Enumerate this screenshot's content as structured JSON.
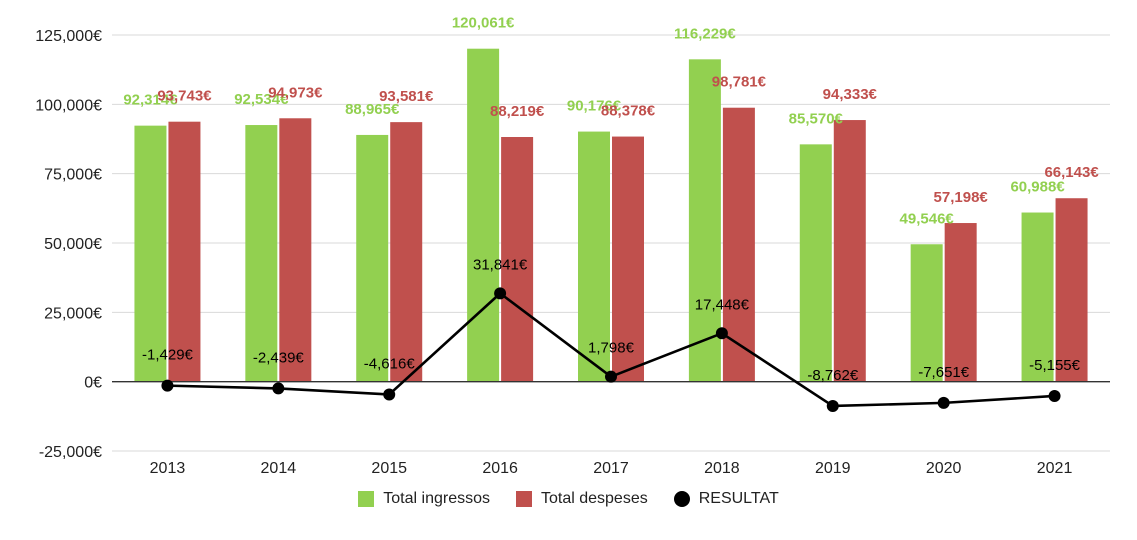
{
  "chart_data": {
    "type": "bar",
    "categories": [
      "2013",
      "2014",
      "2015",
      "2016",
      "2017",
      "2018",
      "2019",
      "2020",
      "2021"
    ],
    "series": [
      {
        "name": "Total ingressos",
        "type": "bar",
        "color": "#92d050",
        "values": [
          92314,
          92534,
          88965,
          120061,
          90176,
          116229,
          85570,
          49546,
          60988
        ],
        "labels": [
          "92,314€",
          "92,534€",
          "88,965€",
          "120,061€",
          "90,176€",
          "116,229€",
          "85,570€",
          "49,546€",
          "60,988€"
        ]
      },
      {
        "name": "Total despeses",
        "type": "bar",
        "color": "#c0504d",
        "values": [
          93743,
          94973,
          93581,
          88219,
          88378,
          98781,
          94333,
          57198,
          66143
        ],
        "labels": [
          "93,743€",
          "94,973€",
          "93,581€",
          "88,219€",
          "88,378€",
          "98,781€",
          "94,333€",
          "57,198€",
          "66,143€"
        ]
      },
      {
        "name": "RESULTAT",
        "type": "line",
        "color": "#000000",
        "values": [
          -1429,
          -2439,
          -4616,
          31841,
          1798,
          17448,
          -8762,
          -7651,
          -5155
        ],
        "labels": [
          "-1,429€",
          "-2,439€",
          "-4,616€",
          "31,841€",
          "1,798€",
          "17,448€",
          "-8,762€",
          "-7,651€",
          "-5,155€"
        ]
      }
    ],
    "ylim": [
      -25000,
      125000
    ],
    "yticks": [
      -25000,
      0,
      25000,
      50000,
      75000,
      100000,
      125000
    ],
    "ytick_labels": [
      "-25,000€",
      "0€",
      "25,000€",
      "50,000€",
      "75,000€",
      "100,000€",
      "125,000€"
    ],
    "grid": true,
    "legend_position": "bottom",
    "title": "",
    "xlabel": "",
    "ylabel": ""
  }
}
